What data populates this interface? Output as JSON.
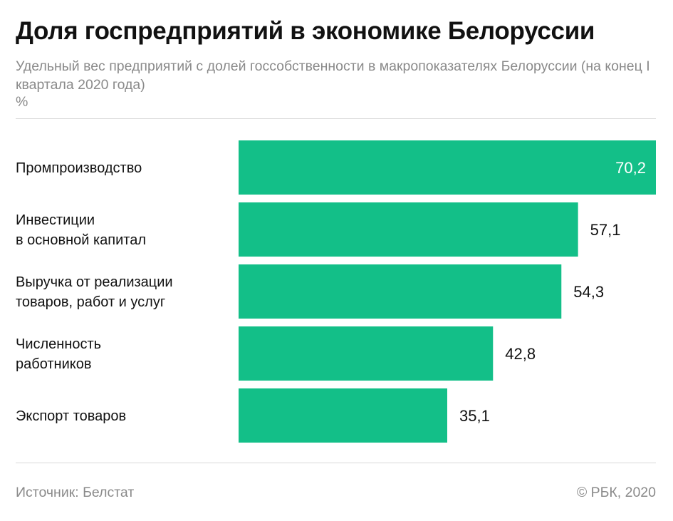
{
  "header": {
    "title": "Доля госпредприятий в экономике Белоруссии",
    "subtitle": "Удельный вес предприятий с долей госсобственности в макропоказателях Белоруссии (на конец I квартала 2020 года)",
    "unit": "%"
  },
  "chart_data": {
    "type": "bar",
    "orientation": "horizontal",
    "categories": [
      [
        "Промпроизводство"
      ],
      [
        "Инвестиции",
        "в основной капитал"
      ],
      [
        "Выручка от реализации",
        "товаров, работ и услуг"
      ],
      [
        "Численность",
        "работников"
      ],
      [
        "Экспорт товаров"
      ]
    ],
    "values": [
      70.2,
      57.1,
      54.3,
      42.8,
      35.1
    ],
    "value_labels": [
      "70,2",
      "57,1",
      "54,3",
      "42,8",
      "35,1"
    ],
    "xlim": [
      0,
      70.2
    ],
    "grid": false,
    "legend": "none",
    "bar_color": "#13bf88",
    "label_inside_color": "#ffffff",
    "label_outside_color": "#111111"
  },
  "footer": {
    "source": "Источник: Белстат",
    "copyright": "© РБК, 2020"
  }
}
